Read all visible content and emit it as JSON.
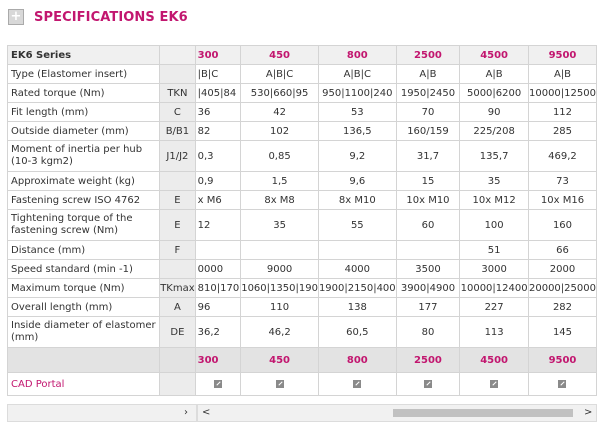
{
  "header": {
    "title": "SPECIFICATIONS EK6",
    "plus_icon": "+"
  },
  "table": {
    "series_label": "EK6 Series",
    "sizes": [
      "300",
      "450",
      "800",
      "2500",
      "4500",
      "9500"
    ],
    "rows": [
      {
        "label": "Type (Elastomer insert)",
        "symbol": "",
        "values": [
          "|B|C",
          "A|B|C",
          "A|B|C",
          "A|B",
          "A|B",
          "A|B"
        ]
      },
      {
        "label": "Rated torque (Nm)",
        "symbol": "TKN",
        "values": [
          "|405|84",
          "530|660|95",
          "950|1100|240",
          "1950|2450",
          "5000|6200",
          "10000|12500"
        ]
      },
      {
        "label": "Fit length (mm)",
        "symbol": "C",
        "values": [
          "36",
          "42",
          "53",
          "70",
          "90",
          "112"
        ]
      },
      {
        "label": "Outside diameter (mm)",
        "symbol": "B/B1",
        "values": [
          "82",
          "102",
          "136,5",
          "160/159",
          "225/208",
          "285"
        ]
      },
      {
        "label": "Moment of inertia per hub (10-3 kgm2)",
        "symbol": "J1/J2",
        "values": [
          "0,3",
          "0,85",
          "9,2",
          "31,7",
          "135,7",
          "469,2"
        ]
      },
      {
        "label": "Approximate weight (kg)",
        "symbol": "",
        "values": [
          "0,9",
          "1,5",
          "9,6",
          "15",
          "35",
          "73"
        ]
      },
      {
        "label": "Fastening screw ISO 4762",
        "symbol": "E",
        "values": [
          "x M6",
          "8x M8",
          "8x M10",
          "10x M10",
          "10x M12",
          "10x M16"
        ]
      },
      {
        "label": "Tightening torque of the fastening screw (Nm)",
        "symbol": "E",
        "values": [
          "12",
          "35",
          "55",
          "60",
          "100",
          "160"
        ]
      },
      {
        "label": "Distance (mm)",
        "symbol": "F",
        "values": [
          "",
          "",
          "",
          "",
          "51",
          "66"
        ]
      },
      {
        "label": "Speed standard (min -1)",
        "symbol": "",
        "values": [
          "0000",
          "9000",
          "4000",
          "3500",
          "3000",
          "2000"
        ]
      },
      {
        "label": "Maximum torque (Nm)",
        "symbol": "TKmax",
        "values": [
          "810|170",
          "1060|1350|190",
          "1900|2150|400",
          "3900|4900",
          "10000|12400",
          "20000|25000"
        ]
      },
      {
        "label": "Overall length (mm)",
        "symbol": "A",
        "values": [
          "96",
          "110",
          "138",
          "177",
          "227",
          "282"
        ]
      },
      {
        "label": "Inside diameter of elastomer (mm)",
        "symbol": "DE",
        "values": [
          "36,2",
          "46,2",
          "60,5",
          "80",
          "113",
          "145"
        ]
      }
    ],
    "cad_label": "CAD Portal"
  },
  "scrollbars": {
    "left_arrow": "‹",
    "right_arrow": "›",
    "arrow_left_2": "<",
    "arrow_right_2": ">"
  },
  "colors": {
    "accent": "#c2166f"
  }
}
